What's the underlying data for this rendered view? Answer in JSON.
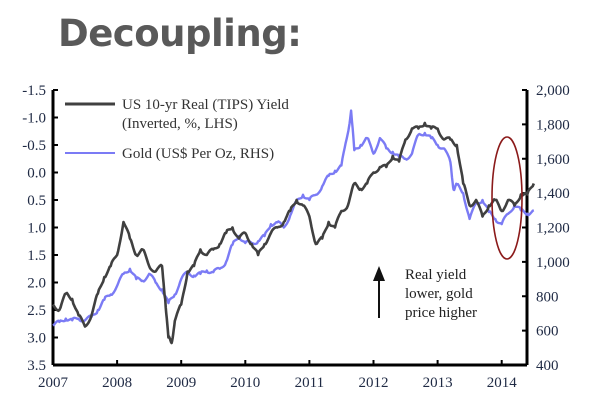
{
  "title": "Decoupling:",
  "chart_data": {
    "type": "line",
    "title": "Decoupling:",
    "xlabel": "",
    "x_ticks": [
      "2007",
      "2008",
      "2009",
      "2010",
      "2011",
      "2012",
      "2013",
      "2014"
    ],
    "x_range": [
      2007.0,
      2014.65
    ],
    "y_left": {
      "label": "US 10-yr Real (TIPS) Yield (Inverted, %, LHS)",
      "inverted": true,
      "range": [
        -1.5,
        3.5
      ],
      "ticks": [
        "-1.5",
        "-1.0",
        "-0.5",
        "0.0",
        "0.5",
        "1.0",
        "1.5",
        "2.0",
        "2.5",
        "3.0",
        "3.5"
      ]
    },
    "y_right": {
      "label": "Gold (US$ Per Oz, RHS)",
      "range": [
        400,
        2000
      ],
      "ticks": [
        "2,000",
        "1,800",
        "1,600",
        "1,400",
        "1,200",
        "1,000",
        "800",
        "600",
        "400"
      ]
    },
    "legend": {
      "placement": "top-left",
      "entries": [
        {
          "label_line1": "US 10-yr Real (TIPS) Yield",
          "label_line2": "(Inverted, %, LHS)",
          "color": "#404040"
        },
        {
          "label_line1": "Gold (US$ Per Oz, RHS)",
          "label_line2": "",
          "color": "#7b7bf5"
        }
      ]
    },
    "series": [
      {
        "name": "US 10-yr Real (TIPS) Yield",
        "axis": "left",
        "color": "#404040",
        "x": [
          2007.0,
          2007.1,
          2007.2,
          2007.3,
          2007.4,
          2007.5,
          2007.6,
          2007.7,
          2007.8,
          2007.9,
          2008.0,
          2008.1,
          2008.2,
          2008.3,
          2008.4,
          2008.5,
          2008.6,
          2008.7,
          2008.75,
          2008.8,
          2008.85,
          2008.9,
          2009.0,
          2009.1,
          2009.2,
          2009.3,
          2009.4,
          2009.5,
          2009.6,
          2009.7,
          2009.8,
          2009.9,
          2010.0,
          2010.1,
          2010.2,
          2010.3,
          2010.4,
          2010.5,
          2010.6,
          2010.7,
          2010.8,
          2010.9,
          2011.0,
          2011.1,
          2011.2,
          2011.3,
          2011.4,
          2011.5,
          2011.6,
          2011.7,
          2011.8,
          2011.9,
          2012.0,
          2012.1,
          2012.2,
          2012.3,
          2012.4,
          2012.5,
          2012.6,
          2012.7,
          2012.8,
          2012.9,
          2013.0,
          2013.1,
          2013.2,
          2013.3,
          2013.4,
          2013.5,
          2013.6,
          2013.7,
          2013.8,
          2013.9,
          2014.0,
          2014.1,
          2014.2,
          2014.3,
          2014.4,
          2014.5
        ],
        "values": [
          2.4,
          2.5,
          2.2,
          2.3,
          2.6,
          2.8,
          2.6,
          2.2,
          1.9,
          1.7,
          1.5,
          0.9,
          1.2,
          1.5,
          1.4,
          1.7,
          1.8,
          1.7,
          2.3,
          3.0,
          3.1,
          2.7,
          2.4,
          1.8,
          1.7,
          1.4,
          1.5,
          1.4,
          1.3,
          1.1,
          1.0,
          1.2,
          1.1,
          1.3,
          1.5,
          1.3,
          1.1,
          1.0,
          0.9,
          0.7,
          0.5,
          0.6,
          0.8,
          1.3,
          1.2,
          0.9,
          1.0,
          0.7,
          0.6,
          0.2,
          0.3,
          0.2,
          0.0,
          -0.1,
          -0.1,
          -0.3,
          -0.2,
          -0.6,
          -0.8,
          -0.8,
          -0.9,
          -0.8,
          -0.8,
          -0.6,
          -0.6,
          -0.5,
          0.2,
          0.6,
          0.5,
          0.8,
          0.6,
          0.5,
          0.7,
          0.5,
          0.6,
          0.4,
          0.4,
          0.2
        ]
      },
      {
        "name": "Gold (US$ Per Oz)",
        "axis": "right",
        "color": "#7b7bf5",
        "x": [
          2007.0,
          2007.1,
          2007.2,
          2007.3,
          2007.4,
          2007.5,
          2007.6,
          2007.7,
          2007.8,
          2007.9,
          2008.0,
          2008.1,
          2008.2,
          2008.3,
          2008.4,
          2008.5,
          2008.6,
          2008.7,
          2008.8,
          2008.9,
          2009.0,
          2009.1,
          2009.2,
          2009.3,
          2009.4,
          2009.5,
          2009.6,
          2009.7,
          2009.8,
          2009.9,
          2010.0,
          2010.1,
          2010.2,
          2010.3,
          2010.4,
          2010.5,
          2010.6,
          2010.7,
          2010.8,
          2010.9,
          2011.0,
          2011.1,
          2011.2,
          2011.3,
          2011.4,
          2011.5,
          2011.6,
          2011.65,
          2011.7,
          2011.8,
          2011.9,
          2012.0,
          2012.1,
          2012.2,
          2012.3,
          2012.4,
          2012.5,
          2012.6,
          2012.7,
          2012.8,
          2012.9,
          2013.0,
          2013.1,
          2013.2,
          2013.25,
          2013.3,
          2013.4,
          2013.5,
          2013.6,
          2013.7,
          2013.8,
          2013.9,
          2014.0,
          2014.1,
          2014.2,
          2014.3,
          2014.4,
          2014.5
        ],
        "values": [
          630,
          650,
          670,
          660,
          670,
          660,
          680,
          720,
          780,
          810,
          860,
          930,
          960,
          900,
          890,
          930,
          880,
          840,
          760,
          810,
          900,
          940,
          920,
          930,
          950,
          940,
          960,
          1000,
          1100,
          1150,
          1110,
          1110,
          1120,
          1150,
          1220,
          1230,
          1200,
          1270,
          1350,
          1390,
          1360,
          1390,
          1440,
          1500,
          1530,
          1560,
          1750,
          1880,
          1650,
          1680,
          1720,
          1630,
          1720,
          1660,
          1640,
          1610,
          1600,
          1630,
          1740,
          1750,
          1720,
          1680,
          1660,
          1580,
          1420,
          1450,
          1400,
          1250,
          1340,
          1360,
          1290,
          1250,
          1220,
          1280,
          1330,
          1300,
          1280,
          1300
        ]
      }
    ],
    "annotations": [
      {
        "type": "text",
        "lines": [
          "Real yield",
          "lower, gold",
          "price higher"
        ]
      },
      {
        "type": "arrow",
        "direction": "up"
      },
      {
        "type": "ellipse",
        "color": "#8b1a1a",
        "highlight": "2014 divergence"
      }
    ],
    "grid": false
  }
}
